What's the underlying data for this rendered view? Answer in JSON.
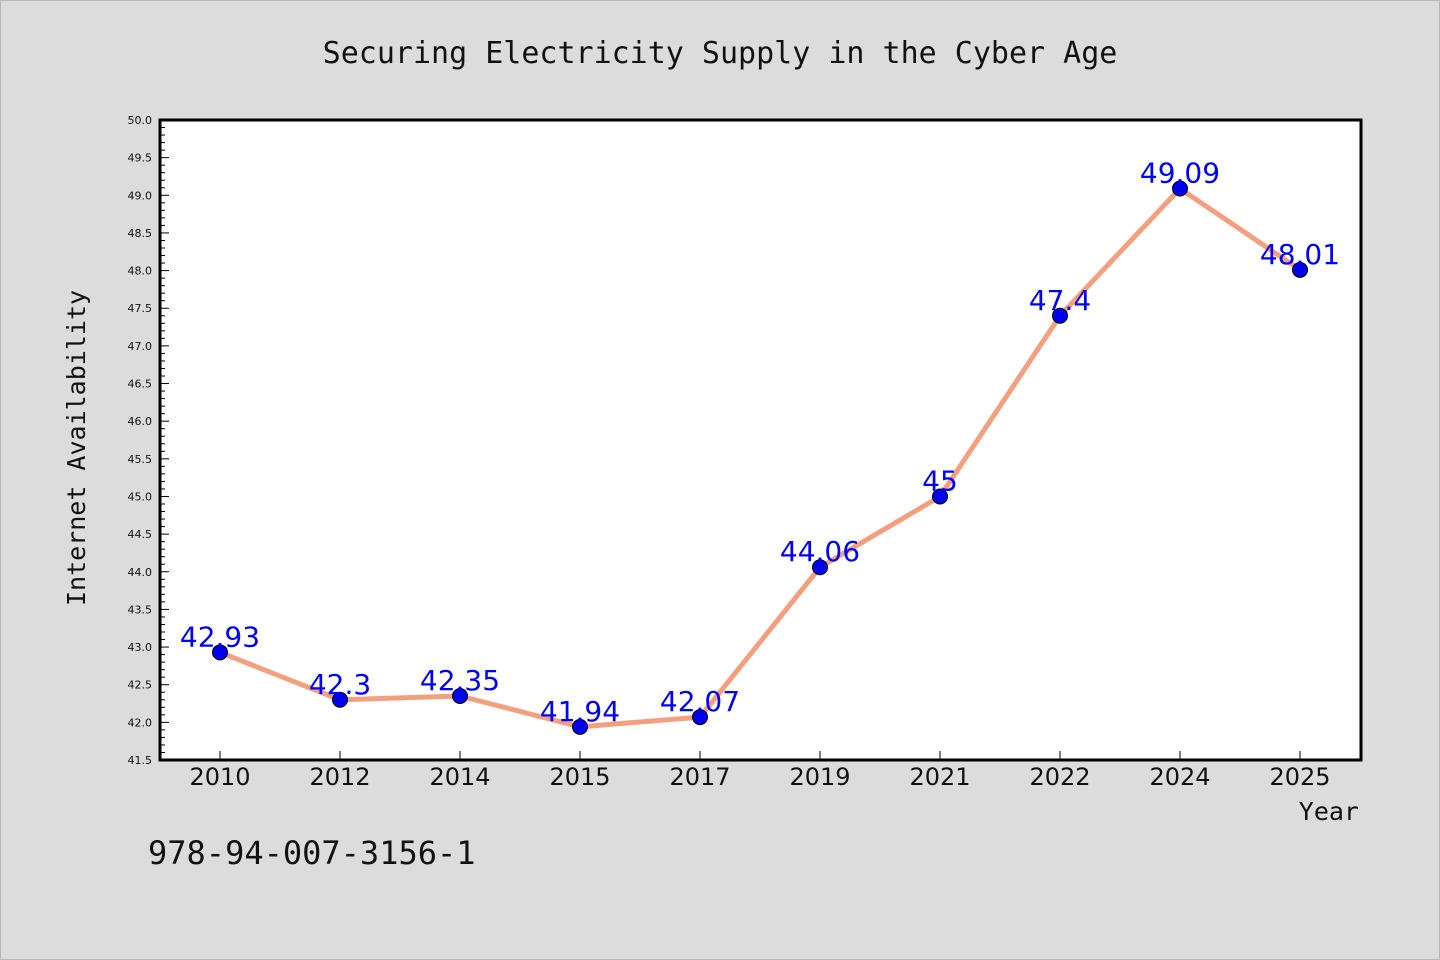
{
  "chart_data": {
    "type": "line",
    "title": "Securing Electricity Supply in the Cyber Age",
    "xlabel": "Year",
    "ylabel": "Internet Availability",
    "categories": [
      "2010",
      "2012",
      "2014",
      "2015",
      "2017",
      "2019",
      "2021",
      "2022",
      "2024",
      "2025"
    ],
    "series": [
      {
        "values": [
          42.93,
          42.3,
          42.35,
          41.94,
          42.07,
          44.06,
          45,
          47.4,
          49.09,
          48.01
        ],
        "data_labels": [
          "42.93",
          "42.3",
          "42.35",
          "41.94",
          "42.07",
          "44.06",
          "45",
          "47.4",
          "49.09",
          "48.01"
        ],
        "line_color": "#f4a07e",
        "marker_color": "#0000ee"
      }
    ],
    "ylim": [
      41.5,
      50.0
    ],
    "yticks": [
      "41.5",
      "42.0",
      "42.5",
      "43.0",
      "43.5",
      "44.0",
      "44.5",
      "45.0",
      "45.5",
      "46.0",
      "46.5",
      "47.0",
      "47.5",
      "48.0",
      "48.5",
      "49.0",
      "49.5",
      "50.0"
    ],
    "grid": false,
    "legend": "none"
  },
  "footnote": "978-94-007-3156-1",
  "colors": {
    "background": "#dcdcdc",
    "plot_background": "#ffffff",
    "label_color": "#0000ff"
  }
}
